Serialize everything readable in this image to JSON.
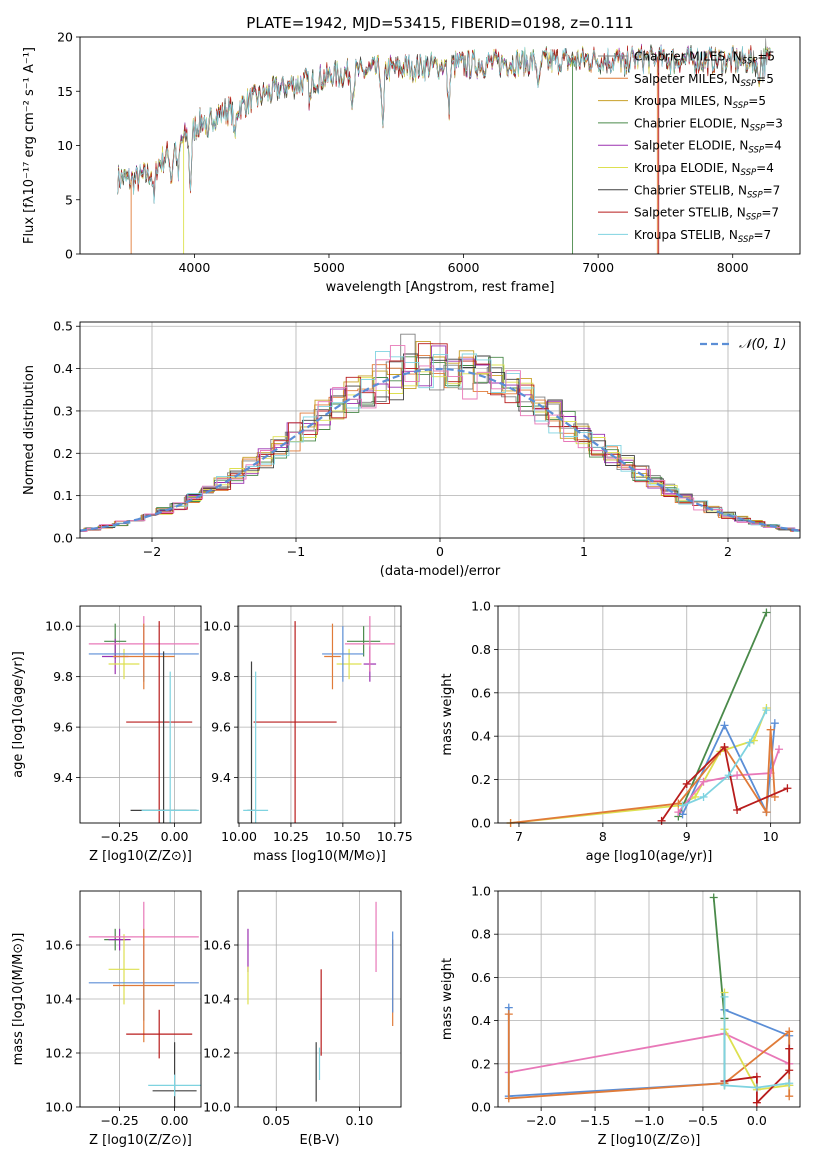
{
  "figure": {
    "title": "PLATE=1942, MJD=53415, FIBERID=0198, z=0.111"
  },
  "chart_data": [
    {
      "id": "spectrum",
      "type": "line",
      "title": "PLATE=1942, MJD=53415, FIBERID=0198, z=0.111",
      "xlabel": "wavelength [Angstrom, rest frame]",
      "ylabel": "Flux [fλ10⁻¹⁷ erg cm⁻² s⁻¹ A⁻¹]",
      "xlim": [
        3150,
        8500
      ],
      "ylim": [
        0,
        20
      ],
      "xticks": [
        4000,
        5000,
        6000,
        7000,
        8000
      ],
      "yticks": [
        0,
        5,
        10,
        15,
        20
      ],
      "grid": false,
      "legend": "upper-right",
      "curve_anchors": {
        "x": [
          3450,
          3550,
          3650,
          3750,
          3850,
          3950,
          4050,
          4150,
          4300,
          4500,
          4700,
          4900,
          5100,
          5300,
          5500,
          5700,
          5900,
          6100,
          6300,
          6500,
          6700,
          6900,
          7100,
          7300,
          7500,
          7700,
          7900,
          8100,
          8280
        ],
        "y": [
          7.0,
          6.8,
          7.3,
          8.5,
          9.8,
          11.0,
          12.2,
          12.8,
          13.4,
          14.6,
          15.5,
          16.1,
          16.6,
          16.9,
          17.1,
          17.3,
          17.4,
          17.5,
          17.6,
          17.7,
          17.8,
          17.9,
          17.9,
          18.0,
          17.9,
          17.9,
          17.8,
          17.8,
          17.9
        ]
      },
      "series": [
        {
          "name": "Chabrier MILES, N_SSP=5",
          "label_main": "Chabrier MILES, N",
          "label_sub": "SSP",
          "label_tail": "=5",
          "color": "#808080",
          "lw": 0.6
        },
        {
          "name": "Salpeter MILES, N_SSP=5",
          "label_main": "Salpeter MILES, N",
          "label_sub": "SSP",
          "label_tail": "=5",
          "color": "#e07b39",
          "lw": 0.6
        },
        {
          "name": "Kroupa MILES, N_SSP=5",
          "label_main": "Kroupa MILES, N",
          "label_sub": "SSP",
          "label_tail": "=5",
          "color": "#c8a028",
          "lw": 0.6
        },
        {
          "name": "Chabrier ELODIE, N_SSP=3",
          "label_main": "Chabrier ELODIE, N",
          "label_sub": "SSP",
          "label_tail": "=3",
          "color": "#4a8a4a",
          "lw": 0.6
        },
        {
          "name": "Salpeter ELODIE, N_SSP=4",
          "label_main": "Salpeter ELODIE, N",
          "label_sub": "SSP",
          "label_tail": "=4",
          "color": "#9b30b0",
          "lw": 0.6
        },
        {
          "name": "Kroupa ELODIE, N_SSP=4",
          "label_main": "Kroupa ELODIE, N",
          "label_sub": "SSP",
          "label_tail": "=4",
          "color": "#dde050",
          "lw": 0.6
        },
        {
          "name": "Chabrier STELIB, N_SSP=7",
          "label_main": "Chabrier STELIB, N",
          "label_sub": "SSP",
          "label_tail": "=7",
          "color": "#404040",
          "lw": 0.6
        },
        {
          "name": "Salpeter STELIB, N_SSP=7",
          "label_main": "Salpeter STELIB, N",
          "label_sub": "SSP",
          "label_tail": "=7",
          "color": "#b81c1c",
          "lw": 0.6
        },
        {
          "name": "Kroupa STELIB, N_SSP=7",
          "label_main": "Kroupa STELIB, N",
          "label_sub": "SSP",
          "label_tail": "=7",
          "color": "#7fd3e0",
          "lw": 0.6
        }
      ]
    },
    {
      "id": "residuals",
      "type": "histogram",
      "xlabel": "(data-model)/error",
      "ylabel": "Normed distribution",
      "xlim": [
        -2.5,
        2.5
      ],
      "ylim": [
        0,
        0.51
      ],
      "xticks": [
        -2,
        -1,
        0,
        1,
        2
      ],
      "yticks": [
        0.0,
        0.1,
        0.2,
        0.3,
        0.4,
        0.5
      ],
      "grid": true,
      "legend": "upper-right",
      "reference_curve": {
        "name": "𝒩(0, 1)",
        "mu": 0,
        "sigma": 1,
        "color": "#5b8ed6"
      },
      "series_colors": [
        "#808080",
        "#e07b39",
        "#c8a028",
        "#4a8a4a",
        "#9b30b0",
        "#dde050",
        "#404040",
        "#b81c1c",
        "#7fd3e0",
        "#e878b8"
      ]
    },
    {
      "id": "age-vs-Z",
      "type": "errorbar",
      "xlabel": "Z [log10(Z/Z⊙)]",
      "ylabel": "age [log10(age/yr)]",
      "xlim": [
        -0.43,
        0.12
      ],
      "ylim": [
        9.22,
        10.08
      ],
      "xticks": [
        -0.25,
        0.0
      ],
      "yticks": [
        9.4,
        9.6,
        9.8,
        10.0
      ],
      "grid": true,
      "points": [
        {
          "x": -0.27,
          "y": 9.94,
          "xerr": 0.05,
          "yerr": 0.07,
          "color": "#4a8a4a"
        },
        {
          "x": -0.27,
          "y": 9.88,
          "xerr": 0.06,
          "yerr": 0.07,
          "color": "#9b30b0"
        },
        {
          "x": -0.23,
          "y": 9.85,
          "xerr": 0.07,
          "yerr": 0.06,
          "color": "#dde050"
        },
        {
          "x": -0.14,
          "y": 9.89,
          "xerr": 0.25,
          "yerr": 0.11,
          "color": "#5b8ed6"
        },
        {
          "x": -0.14,
          "y": 9.93,
          "xerr": 0.25,
          "yerr": 0.11,
          "color": "#e878b8"
        },
        {
          "x": -0.14,
          "y": 9.88,
          "xerr": 0.14,
          "yerr": 0.13,
          "color": "#e07b39"
        },
        {
          "x": -0.07,
          "y": 9.62,
          "xerr": 0.15,
          "yerr": 0.4,
          "color": "#b81c1c"
        },
        {
          "x": -0.05,
          "y": 9.27,
          "xerr": 0.15,
          "yerr": 0.63,
          "color": "#404040"
        },
        {
          "x": -0.02,
          "y": 9.27,
          "xerr": 0.13,
          "yerr": 0.55,
          "color": "#7fd3e0"
        }
      ]
    },
    {
      "id": "age-vs-mass",
      "type": "errorbar",
      "xlabel": "mass [log10(M/M⊙)]",
      "ylabel": "",
      "xlim": [
        9.995,
        10.78
      ],
      "ylim": [
        9.22,
        10.08
      ],
      "xticks": [
        10.0,
        10.25,
        10.5,
        10.75
      ],
      "yticks": [
        9.4,
        9.6,
        9.8,
        10.0
      ],
      "grid": true,
      "points": [
        {
          "x": 10.6,
          "y": 9.94,
          "xerr": 0.08,
          "yerr": 0.06,
          "color": "#4a8a4a"
        },
        {
          "x": 10.63,
          "y": 9.85,
          "xerr": 0.03,
          "yerr": 0.07,
          "color": "#9b30b0"
        },
        {
          "x": 10.53,
          "y": 9.85,
          "xerr": 0.06,
          "yerr": 0.06,
          "color": "#dde050"
        },
        {
          "x": 10.5,
          "y": 9.89,
          "xerr": 0.1,
          "yerr": 0.11,
          "color": "#5b8ed6"
        },
        {
          "x": 10.63,
          "y": 9.93,
          "xerr": 0.12,
          "yerr": 0.11,
          "color": "#e878b8"
        },
        {
          "x": 10.45,
          "y": 9.88,
          "xerr": 0.04,
          "yerr": 0.13,
          "color": "#e07b39"
        },
        {
          "x": 10.27,
          "y": 9.62,
          "xerr": 0.2,
          "yerr": 0.4,
          "color": "#b81c1c"
        },
        {
          "x": 10.06,
          "y": 9.27,
          "xerr": 0.02,
          "yerr": 0.59,
          "color": "#404040"
        },
        {
          "x": 10.08,
          "y": 9.27,
          "xerr": 0.06,
          "yerr": 0.55,
          "color": "#7fd3e0"
        }
      ]
    },
    {
      "id": "weight-vs-age",
      "type": "line",
      "xlabel": "age  [log10(age/yr)]",
      "ylabel": "mass weight",
      "xlim": [
        6.75,
        10.35
      ],
      "ylim": [
        0.0,
        1.0
      ],
      "xticks": [
        7,
        8,
        9,
        10
      ],
      "yticks": [
        0.0,
        0.2,
        0.4,
        0.6,
        0.8,
        1.0
      ],
      "grid": true,
      "series": [
        {
          "color": "#dde050",
          "x": [
            6.9,
            8.9,
            9.1,
            9.4,
            9.8,
            9.95
          ],
          "y": [
            0.0,
            0.08,
            0.12,
            0.33,
            0.38,
            0.53
          ]
        },
        {
          "color": "#4a8a4a",
          "x": [
            8.9,
            9.95
          ],
          "y": [
            0.03,
            0.97
          ]
        },
        {
          "color": "#5b8ed6",
          "x": [
            8.95,
            9.45,
            9.95,
            10.05
          ],
          "y": [
            0.04,
            0.45,
            0.05,
            0.46
          ]
        },
        {
          "color": "#e878b8",
          "x": [
            8.9,
            9.2,
            9.6,
            10.0,
            10.1
          ],
          "y": [
            0.05,
            0.19,
            0.22,
            0.23,
            0.34
          ]
        },
        {
          "color": "#e07b39",
          "x": [
            6.9,
            8.9,
            9.45,
            9.95,
            10.0,
            10.05
          ],
          "y": [
            0.0,
            0.09,
            0.35,
            0.05,
            0.43,
            0.12
          ]
        },
        {
          "color": "#b81c1c",
          "x": [
            8.7,
            9.0,
            9.45,
            9.6,
            10.2
          ],
          "y": [
            0.01,
            0.18,
            0.35,
            0.06,
            0.16
          ]
        },
        {
          "color": "#7fd3e0",
          "x": [
            8.95,
            9.2,
            9.5,
            9.75,
            9.95
          ],
          "y": [
            0.08,
            0.12,
            0.22,
            0.37,
            0.52
          ]
        }
      ]
    },
    {
      "id": "mass-vs-Z",
      "type": "errorbar",
      "xlabel": "Z [log10(Z/Z⊙)]",
      "ylabel": "mass [log10(M/M⊙)]",
      "xlim": [
        -0.43,
        0.12
      ],
      "ylim": [
        10.0,
        10.8
      ],
      "xticks": [
        -0.25,
        0.0
      ],
      "yticks": [
        10.0,
        10.2,
        10.4,
        10.6
      ],
      "grid": true,
      "points": [
        {
          "x": -0.27,
          "y": 10.62,
          "xerr": 0.05,
          "yerr": 0.04,
          "color": "#4a8a4a"
        },
        {
          "x": -0.25,
          "y": 10.62,
          "xerr": 0.05,
          "yerr": 0.04,
          "color": "#9b30b0"
        },
        {
          "x": -0.23,
          "y": 10.51,
          "xerr": 0.07,
          "yerr": 0.13,
          "color": "#dde050"
        },
        {
          "x": -0.14,
          "y": 10.46,
          "xerr": 0.25,
          "yerr": 0.14,
          "color": "#5b8ed6"
        },
        {
          "x": -0.14,
          "y": 10.63,
          "xerr": 0.25,
          "yerr": 0.13,
          "color": "#e878b8"
        },
        {
          "x": -0.14,
          "y": 10.45,
          "xerr": 0.14,
          "yerr": 0.21,
          "color": "#e07b39"
        },
        {
          "x": -0.07,
          "y": 10.27,
          "xerr": 0.15,
          "yerr": 0.09,
          "color": "#b81c1c"
        },
        {
          "x": 0.0,
          "y": 10.06,
          "xerr": 0.1,
          "yerr": 0.18,
          "color": "#404040"
        },
        {
          "x": 0.0,
          "y": 10.08,
          "xerr": 0.12,
          "yerr": 0.04,
          "color": "#7fd3e0"
        }
      ]
    },
    {
      "id": "mass-vs-EBV",
      "type": "errorbar",
      "xlabel": "E(B-V)",
      "ylabel": "",
      "xlim": [
        0.027,
        0.125
      ],
      "ylim": [
        10.0,
        10.8
      ],
      "xticks": [
        0.05,
        0.1
      ],
      "yticks": [
        10.0,
        10.2,
        10.4,
        10.6
      ],
      "grid": true,
      "points": [
        {
          "x": 0.033,
          "y": 10.58,
          "xerr": 0.0,
          "yerr": 0.08,
          "color": "#9b30b0"
        },
        {
          "x": 0.033,
          "y": 10.45,
          "xerr": 0.0,
          "yerr": 0.07,
          "color": "#dde050"
        },
        {
          "x": 0.077,
          "y": 10.35,
          "xerr": 0.0,
          "yerr": 0.16,
          "color": "#b81c1c"
        },
        {
          "x": 0.074,
          "y": 10.13,
          "xerr": 0.0,
          "yerr": 0.11,
          "color": "#404040"
        },
        {
          "x": 0.076,
          "y": 10.16,
          "xerr": 0.0,
          "yerr": 0.06,
          "color": "#7fd3e0"
        },
        {
          "x": 0.11,
          "y": 10.63,
          "xerr": 0.0,
          "yerr": 0.13,
          "color": "#e878b8"
        },
        {
          "x": 0.12,
          "y": 10.46,
          "xerr": 0.0,
          "yerr": 0.16,
          "color": "#e07b39"
        },
        {
          "x": 0.12,
          "y": 10.5,
          "xerr": 0.0,
          "yerr": 0.15,
          "color": "#5b8ed6"
        }
      ]
    },
    {
      "id": "weight-vs-Z",
      "type": "line",
      "xlabel": "Z [log10(Z/Z⊙)]",
      "ylabel": "mass weight",
      "xlim": [
        -2.4,
        0.4
      ],
      "ylim": [
        0.0,
        1.0
      ],
      "xticks": [
        -2.0,
        -1.5,
        -1.0,
        -0.5,
        0.0
      ],
      "yticks": [
        0.0,
        0.2,
        0.4,
        0.6,
        0.8,
        1.0
      ],
      "grid": true,
      "series": [
        {
          "color": "#e878b8",
          "x": [
            -2.3,
            -0.3,
            0.3
          ],
          "y": [
            0.16,
            0.34,
            0.2
          ]
        },
        {
          "color": "#5b8ed6",
          "x": [
            -2.3,
            -2.3,
            -0.3,
            -0.3,
            0.3,
            0.3
          ],
          "y": [
            0.46,
            0.05,
            0.11,
            0.45,
            0.33,
            0.1
          ]
        },
        {
          "color": "#e07b39",
          "x": [
            -2.3,
            -2.3,
            -0.3,
            0.3,
            0.3
          ],
          "y": [
            0.43,
            0.04,
            0.11,
            0.35,
            0.05
          ]
        },
        {
          "color": "#4a8a4a",
          "x": [
            -0.4,
            -0.3,
            -0.3
          ],
          "y": [
            0.97,
            0.41,
            0.1
          ]
        },
        {
          "color": "#dde050",
          "x": [
            -0.3,
            -0.3,
            0.0,
            0.3
          ],
          "y": [
            0.53,
            0.36,
            0.08,
            0.1
          ]
        },
        {
          "color": "#b81c1c",
          "x": [
            -0.3,
            0.0,
            0.0,
            0.3,
            0.3
          ],
          "y": [
            0.12,
            0.14,
            0.02,
            0.17,
            0.27
          ]
        },
        {
          "color": "#7fd3e0",
          "x": [
            -0.3,
            -0.3,
            0.0,
            0.3
          ],
          "y": [
            0.51,
            0.1,
            0.09,
            0.11
          ]
        }
      ]
    }
  ]
}
